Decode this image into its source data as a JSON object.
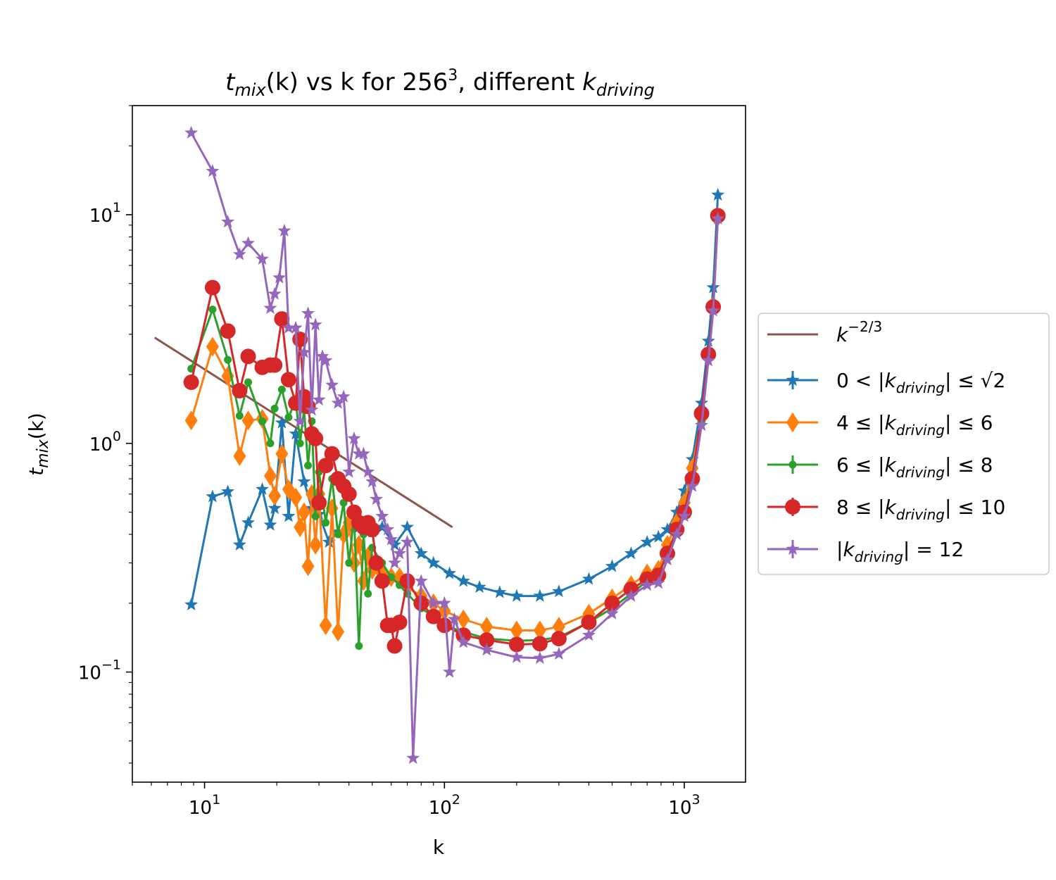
{
  "chart_data": {
    "type": "line",
    "title": "t_mix(k) vs k for 256^3, different k_driving",
    "title_parts": {
      "t": "t",
      "mix": "mix",
      "arg": "(k)",
      "mid": " vs k for 256",
      "exp": "3",
      "mid2": ", different ",
      "k": "k",
      "driving": "driving"
    },
    "xlabel": "k",
    "ylabel_parts": {
      "t": "t",
      "mix": "mix",
      "arg": "(k)"
    },
    "xscale": "log",
    "yscale": "log",
    "xlim": [
      5,
      1800
    ],
    "ylim": [
      0.033,
      30
    ],
    "x_ticks": [
      {
        "base": "10",
        "exp": "1",
        "value": 10
      },
      {
        "base": "10",
        "exp": "2",
        "value": 100
      },
      {
        "base": "10",
        "exp": "3",
        "value": 1000
      }
    ],
    "y_ticks": [
      {
        "base": "10",
        "exp": "−1",
        "value": 0.1
      },
      {
        "base": "10",
        "exp": "0",
        "value": 1
      },
      {
        "base": "10",
        "exp": "1",
        "value": 10
      }
    ],
    "grid": false,
    "legend_position": "right, outside plot",
    "legend_labels": {
      "ref": {
        "k": "k",
        "exp": "−2/3"
      },
      "s0": {
        "pre": "0 < |",
        "k": "k",
        "sub": "driving",
        "post": "| ≤ √2"
      },
      "s1": {
        "pre": "4 ≤ |",
        "k": "k",
        "sub": "driving",
        "post": "| ≤ 6"
      },
      "s2": {
        "pre": "6 ≤ |",
        "k": "k",
        "sub": "driving",
        "post": "| ≤ 8"
      },
      "s3": {
        "pre": "8 ≤ |",
        "k": "k",
        "sub": "driving",
        "post": "| ≤ 10"
      },
      "s4": {
        "pre": "|",
        "k": "k",
        "sub": "driving",
        "post": "| = 12"
      }
    },
    "reference_line": {
      "color": "#8c564b",
      "x": [
        6.2,
        108
      ],
      "y": [
        2.9,
        0.43
      ]
    },
    "series": [
      {
        "id": "s0",
        "color": "#1f77b4",
        "marker": "star",
        "x": [
          8.8,
          10.8,
          12.5,
          14,
          15.2,
          17.4,
          18.8,
          19.6,
          21,
          22.4,
          24,
          26,
          28,
          30,
          33,
          36,
          40,
          44,
          50,
          55,
          62,
          70,
          80,
          90,
          105,
          120,
          140,
          170,
          200,
          250,
          300,
          400,
          500,
          600,
          700,
          780,
          850,
          930,
          1000,
          1080,
          1180,
          1260,
          1320,
          1380
        ],
        "y": [
          0.197,
          0.585,
          0.615,
          0.36,
          0.45,
          0.63,
          0.44,
          0.52,
          1.23,
          0.48,
          1.1,
          0.68,
          0.52,
          0.49,
          0.37,
          0.41,
          0.43,
          0.43,
          0.41,
          0.43,
          0.36,
          0.43,
          0.33,
          0.3,
          0.27,
          0.25,
          0.235,
          0.223,
          0.215,
          0.215,
          0.225,
          0.255,
          0.29,
          0.33,
          0.37,
          0.39,
          0.42,
          0.5,
          0.62,
          0.85,
          1.5,
          2.8,
          4.8,
          12.2
        ]
      },
      {
        "id": "s1",
        "color": "#ff7f0e",
        "marker": "diamond",
        "x": [
          8.8,
          10.8,
          12.5,
          14,
          15.2,
          17.4,
          18.8,
          19.6,
          21,
          22.4,
          24,
          25,
          26,
          27,
          28,
          29,
          30,
          32,
          34,
          36,
          38,
          40,
          42,
          44,
          46,
          48,
          50,
          55,
          60,
          65,
          70,
          80,
          90,
          100,
          120,
          150,
          200,
          250,
          300,
          400,
          500,
          600,
          700,
          780,
          850,
          930,
          1000,
          1080,
          1180,
          1260,
          1320,
          1380
        ],
        "y": [
          1.26,
          2.65,
          1.97,
          0.88,
          1.26,
          1.28,
          0.72,
          0.59,
          0.9,
          0.63,
          0.58,
          0.43,
          0.5,
          0.29,
          0.6,
          0.36,
          0.6,
          0.16,
          0.52,
          0.15,
          0.4,
          0.45,
          0.3,
          0.36,
          0.25,
          0.32,
          0.28,
          0.27,
          0.26,
          0.26,
          0.235,
          0.215,
          0.2,
          0.185,
          0.17,
          0.158,
          0.152,
          0.152,
          0.158,
          0.18,
          0.21,
          0.24,
          0.27,
          0.28,
          0.36,
          0.45,
          0.55,
          0.78,
          1.3,
          2.4,
          4.0,
          9.8
        ]
      },
      {
        "id": "s2",
        "color": "#2ca02c",
        "marker": "dot",
        "x": [
          8.8,
          10.8,
          12.5,
          14,
          15.2,
          17.4,
          18.8,
          19.6,
          21,
          22.4,
          24,
          25,
          26,
          27,
          28,
          29,
          30,
          32,
          34,
          36,
          38,
          40,
          42,
          44,
          46,
          48,
          50,
          55,
          60,
          65,
          70,
          80,
          90,
          100,
          120,
          150,
          200,
          250,
          300,
          400,
          500,
          600,
          700,
          780,
          850,
          930,
          1000,
          1080,
          1180,
          1260,
          1320,
          1380
        ],
        "y": [
          2.12,
          3.85,
          2.32,
          1.32,
          1.85,
          1.25,
          1.0,
          1.42,
          1.72,
          1.3,
          1.55,
          1.0,
          1.4,
          0.8,
          1.25,
          0.48,
          0.75,
          0.45,
          0.7,
          0.4,
          0.55,
          0.3,
          0.48,
          0.13,
          0.4,
          0.22,
          0.35,
          0.3,
          0.26,
          0.24,
          0.22,
          0.19,
          0.175,
          0.16,
          0.15,
          0.14,
          0.137,
          0.138,
          0.142,
          0.165,
          0.19,
          0.22,
          0.25,
          0.27,
          0.33,
          0.42,
          0.5,
          0.72,
          1.25,
          2.4,
          4.0,
          9.8
        ]
      },
      {
        "id": "s3",
        "color": "#d62728",
        "marker": "circle",
        "x": [
          8.8,
          10.8,
          12.5,
          14,
          15.2,
          17.4,
          18.8,
          19.6,
          21,
          22.4,
          24,
          25,
          26,
          27,
          28,
          29,
          30,
          32,
          34,
          36,
          38,
          40,
          42,
          44,
          46,
          48,
          50,
          52,
          55,
          58,
          60,
          62,
          65,
          70,
          80,
          90,
          100,
          120,
          150,
          200,
          250,
          300,
          400,
          500,
          600,
          700,
          780,
          850,
          930,
          1000,
          1080,
          1180,
          1260,
          1320,
          1380
        ],
        "y": [
          1.85,
          4.8,
          3.1,
          1.7,
          2.4,
          2.15,
          2.2,
          2.2,
          3.5,
          1.9,
          1.5,
          2.85,
          1.6,
          1.45,
          1.1,
          1.05,
          0.55,
          0.8,
          0.9,
          0.7,
          0.65,
          0.6,
          0.5,
          0.45,
          0.43,
          0.45,
          0.42,
          0.3,
          0.25,
          0.16,
          0.16,
          0.13,
          0.165,
          0.25,
          0.2,
          0.175,
          0.16,
          0.145,
          0.138,
          0.132,
          0.133,
          0.14,
          0.165,
          0.2,
          0.23,
          0.255,
          0.265,
          0.33,
          0.42,
          0.5,
          0.7,
          1.35,
          2.45,
          3.95,
          9.9
        ]
      },
      {
        "id": "s4",
        "color": "#9467bd",
        "marker": "star",
        "x": [
          8.8,
          10.8,
          12.5,
          14,
          15.2,
          17.4,
          18.8,
          19.6,
          20.5,
          21.5,
          22.4,
          24,
          25,
          26,
          27,
          28,
          29,
          30,
          31,
          32,
          34,
          36,
          38,
          40,
          42,
          44,
          46,
          48,
          50,
          52,
          55,
          58,
          60,
          62,
          65,
          70,
          74,
          80,
          90,
          100,
          105,
          110,
          120,
          150,
          200,
          250,
          300,
          400,
          500,
          600,
          700,
          780,
          850,
          930,
          1000,
          1080,
          1180,
          1260,
          1320,
          1380
        ],
        "y": [
          22.8,
          15.5,
          9.3,
          6.7,
          7.5,
          6.4,
          3.9,
          4.5,
          5.3,
          8.5,
          3.2,
          3.2,
          1.25,
          2.5,
          3.7,
          1.4,
          3.3,
          1.55,
          2.4,
          2.3,
          1.8,
          1.5,
          1.6,
          0.75,
          1.05,
          0.9,
          0.9,
          0.75,
          0.68,
          0.57,
          0.48,
          0.42,
          0.38,
          0.3,
          0.33,
          0.37,
          0.042,
          0.25,
          0.2,
          0.2,
          0.1,
          0.17,
          0.135,
          0.125,
          0.116,
          0.115,
          0.12,
          0.145,
          0.18,
          0.215,
          0.24,
          0.245,
          0.31,
          0.4,
          0.48,
          0.65,
          1.2,
          2.3,
          3.8,
          9.6
        ]
      }
    ]
  }
}
